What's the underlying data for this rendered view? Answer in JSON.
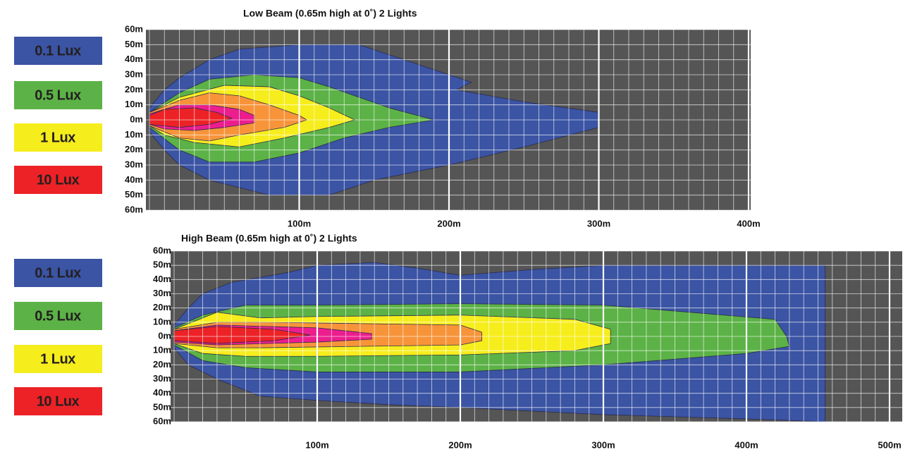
{
  "panels": [
    {
      "title": "Low Beam (0.65m high at 0˚) 2 Lights",
      "legend": [
        "0.1 Lux",
        "0.5 Lux",
        "1 Lux",
        "10 Lux"
      ],
      "y_labels": [
        "60m",
        "50m",
        "40m",
        "30m",
        "20m",
        "10m",
        "0m",
        "10m",
        "20m",
        "30m",
        "40m",
        "50m",
        "60m"
      ],
      "x_labels": [
        "100m",
        "200m",
        "300m",
        "400m"
      ]
    },
    {
      "title": "High Beam (0.65m high at 0˚) 2 Lights",
      "legend": [
        "0.1 Lux",
        "0.5 Lux",
        "1 Lux",
        "10 Lux"
      ],
      "y_labels": [
        "60m",
        "50m",
        "40m",
        "30m",
        "20m",
        "10m",
        "0m",
        "10m",
        "20m",
        "30m",
        "40m",
        "50m",
        "60m"
      ],
      "x_labels": [
        "100m",
        "200m",
        "300m",
        "400m",
        "500m"
      ]
    }
  ]
}
